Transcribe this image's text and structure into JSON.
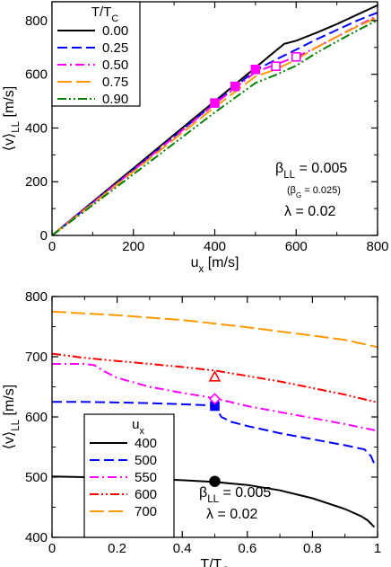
{
  "chart_data": [
    {
      "type": "line",
      "xlabel": "u",
      "xlabel_sub": "x",
      "xlabel_unit": " [m/s]",
      "ylabel": "⟨v⟩",
      "ylabel_sub": "LL",
      "ylabel_unit": " [m/s]",
      "xlim": [
        0,
        800
      ],
      "ylim": [
        0,
        870
      ],
      "xticks": [
        0,
        200,
        400,
        600,
        800
      ],
      "yticks": [
        0,
        200,
        400,
        600,
        800
      ],
      "legend": {
        "title": "T/T",
        "title_sub": "C",
        "placement": "top-left",
        "entries": [
          "0.00",
          "0.25",
          "0.50",
          "0.75",
          "0.90"
        ]
      },
      "annotations": {
        "beta_ll": "β",
        "beta_ll_sub": "LL",
        "beta_ll_val": " = 0.005",
        "beta_g": "(β",
        "beta_g_sub": "G",
        "beta_g_val": " = 0.025)",
        "lambda": "λ = 0.02"
      },
      "series": [
        {
          "name": "0.00",
          "color": "#000000",
          "dash": "solid",
          "x": [
            0,
            100,
            200,
            300,
            400,
            500,
            550,
            560,
            565,
            570,
            600,
            650,
            700,
            750,
            800
          ],
          "y": [
            0,
            125,
            250,
            375,
            500,
            625,
            688,
            700,
            706,
            713,
            725,
            755,
            787,
            822,
            857
          ]
        },
        {
          "name": "0.25",
          "color": "#0000ff",
          "dash": "long",
          "x": [
            0,
            100,
            200,
            300,
            400,
            500,
            550,
            600,
            650,
            700,
            750,
            800
          ],
          "y": [
            0,
            122,
            245,
            368,
            493,
            615,
            655,
            692,
            730,
            765,
            800,
            830
          ]
        },
        {
          "name": "0.50",
          "color": "#ff00ff",
          "dash": "dashdot",
          "x": [
            0,
            100,
            200,
            300,
            400,
            500,
            550,
            600,
            650,
            700,
            750,
            800
          ],
          "y": [
            0,
            121,
            243,
            366,
            490,
            608,
            637,
            665,
            700,
            740,
            780,
            818
          ]
        },
        {
          "name": "0.75",
          "color": "#ff9900",
          "dash": "longdash",
          "x": [
            0,
            100,
            200,
            300,
            400,
            500,
            550,
            600,
            650,
            700,
            750,
            800
          ],
          "y": [
            0,
            118,
            238,
            358,
            478,
            592,
            618,
            655,
            700,
            740,
            778,
            812
          ]
        },
        {
          "name": "0.90",
          "color": "#008000",
          "dash": "dashdotdot",
          "x": [
            0,
            100,
            200,
            300,
            400,
            500,
            550,
            600,
            650,
            700,
            750,
            800
          ],
          "y": [
            0,
            113,
            228,
            343,
            458,
            568,
            598,
            632,
            680,
            722,
            763,
            802
          ]
        }
      ],
      "markers": [
        {
          "x": 400,
          "y": 493,
          "color": "#ff00ff",
          "shape": "square",
          "filled": true
        },
        {
          "x": 450,
          "y": 555,
          "color": "#ff00ff",
          "shape": "square",
          "filled": true
        },
        {
          "x": 500,
          "y": 618,
          "color": "#ff00ff",
          "shape": "square",
          "filled": true
        },
        {
          "x": 550,
          "y": 630,
          "color": "#ff00ff",
          "shape": "square",
          "filled": false
        },
        {
          "x": 600,
          "y": 665,
          "color": "#ff00ff",
          "shape": "square",
          "filled": false
        }
      ]
    },
    {
      "type": "line",
      "xlabel": "T/T",
      "xlabel_sub": "C",
      "xlabel_unit": "",
      "ylabel": "⟨v⟩",
      "ylabel_sub": "LL",
      "ylabel_unit": " [m/s]",
      "xlim": [
        0,
        1
      ],
      "ylim": [
        400,
        800
      ],
      "xticks": [
        0,
        0.2,
        0.4,
        0.6,
        0.8,
        1
      ],
      "xtick_labels": [
        "0",
        "0.2",
        "0.4",
        "0.6",
        "0.8",
        "1"
      ],
      "yticks": [
        400,
        500,
        600,
        700,
        800
      ],
      "legend": {
        "title": "u",
        "title_sub": "x",
        "placement": "bottom-left",
        "entries": [
          "400",
          "500",
          "550",
          "600",
          "700"
        ]
      },
      "annotations": {
        "beta_ll": "β",
        "beta_ll_sub": "LL",
        "beta_ll_val": " = 0.005",
        "lambda": "λ = 0.02"
      },
      "series": [
        {
          "name": "400",
          "color": "#000000",
          "dash": "solid",
          "x": [
            0,
            0.1,
            0.2,
            0.3,
            0.4,
            0.5,
            0.6,
            0.7,
            0.8,
            0.9,
            0.95,
            0.97,
            0.99
          ],
          "y": [
            501,
            500,
            499,
            497,
            495,
            492,
            487,
            478,
            465,
            447,
            435,
            428,
            417
          ]
        },
        {
          "name": "500",
          "color": "#0000ff",
          "dash": "long",
          "x": [
            0,
            0.1,
            0.2,
            0.3,
            0.4,
            0.5,
            0.52,
            0.55,
            0.6,
            0.7,
            0.8,
            0.9,
            0.96,
            0.98,
            0.99
          ],
          "y": [
            625,
            625,
            624,
            623,
            621,
            619,
            600,
            592,
            585,
            573,
            563,
            553,
            546,
            535,
            522
          ]
        },
        {
          "name": "550",
          "color": "#ff00ff",
          "dash": "dashdot",
          "x": [
            0,
            0.05,
            0.1,
            0.13,
            0.16,
            0.2,
            0.3,
            0.4,
            0.5,
            0.6,
            0.7,
            0.8,
            0.9,
            1.0
          ],
          "y": [
            688,
            688,
            688,
            686,
            676,
            665,
            650,
            640,
            631,
            618,
            608,
            598,
            588,
            577
          ]
        },
        {
          "name": "600",
          "color": "#ff0000",
          "dash": "dashdotdot",
          "x": [
            0,
            0.1,
            0.2,
            0.3,
            0.4,
            0.5,
            0.6,
            0.7,
            0.8,
            0.9,
            1.0
          ],
          "y": [
            705,
            698,
            693,
            688,
            683,
            677,
            668,
            659,
            648,
            637,
            624
          ]
        },
        {
          "name": "700",
          "color": "#ff9900",
          "dash": "longdash",
          "x": [
            0,
            0.1,
            0.2,
            0.3,
            0.4,
            0.5,
            0.6,
            0.7,
            0.8,
            0.9,
            1.0
          ],
          "y": [
            775,
            772,
            769,
            765,
            761,
            755,
            749,
            742,
            735,
            728,
            716
          ]
        }
      ],
      "markers": [
        {
          "x": 0.5,
          "y": 493,
          "color": "#000000",
          "shape": "circle",
          "filled": true
        },
        {
          "x": 0.5,
          "y": 618,
          "color": "#0000ff",
          "shape": "square",
          "filled": true
        },
        {
          "x": 0.5,
          "y": 630,
          "color": "#ff00ff",
          "shape": "diamond",
          "filled": false
        },
        {
          "x": 0.5,
          "y": 666,
          "color": "#ff0000",
          "shape": "triangle",
          "filled": false
        }
      ]
    }
  ]
}
